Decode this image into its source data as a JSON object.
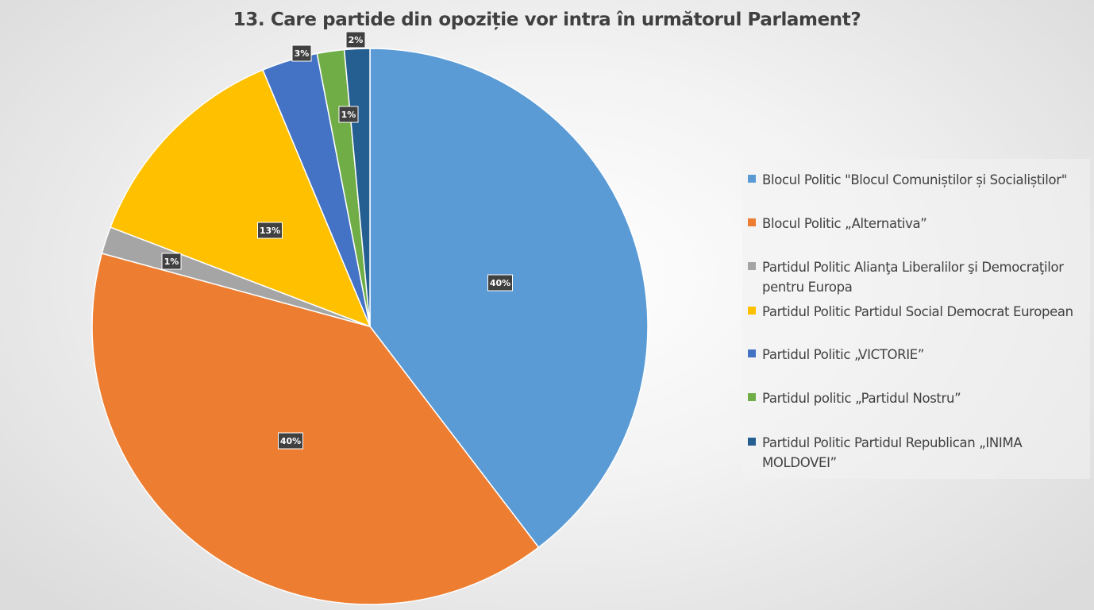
{
  "chart_data": {
    "type": "pie",
    "title": "13. Care partide din opoziție vor intra în următorul Parlament?",
    "categories": [
      "Blocul Politic \"Blocul Comuniștilor și Socialiștilor\"",
      "Blocul Politic „Alternativa”",
      "Partidul Politic Alianţa Liberalilor şi Democraţilor pentru Europa",
      "Partidul Politic Partidul Social Democrat European",
      "Partidul Politic „VICTORIE”",
      "Partidul politic „Partidul Nostru”",
      "Partidul Politic Partidul Republican „INIMA MOLDOVEI”"
    ],
    "values": [
      40,
      40,
      1,
      13,
      3,
      1,
      2
    ],
    "data_labels": [
      "40%",
      "40%",
      "1%",
      "13%",
      "3%",
      "1%",
      "2%"
    ],
    "slice_weights": [
      40.25,
      40.25,
      1.6,
      13.1,
      3.3,
      1.6,
      1.5
    ],
    "colors": [
      "#5B9BD5",
      "#ED7D31",
      "#A5A5A5",
      "#FFC000",
      "#4472C4",
      "#70AD47",
      "#255E91"
    ],
    "legend_position": "right",
    "legend": [
      [
        "Blocul Politic \"Blocul Comuniștilor și Socialiștilor\""
      ],
      [
        "Blocul Politic „Alternativa”"
      ],
      [
        "Partidul Politic Alianţa Liberalilor şi Democraţilor",
        "pentru Europa"
      ],
      [
        "Partidul Politic Partidul Social Democrat European"
      ],
      [
        "Partidul Politic „VICTORIE”"
      ],
      [
        "Partidul politic „Partidul Nostru”"
      ],
      [
        "Partidul Politic Partidul Republican „INIMA",
        "MOLDOVEI”"
      ]
    ]
  }
}
